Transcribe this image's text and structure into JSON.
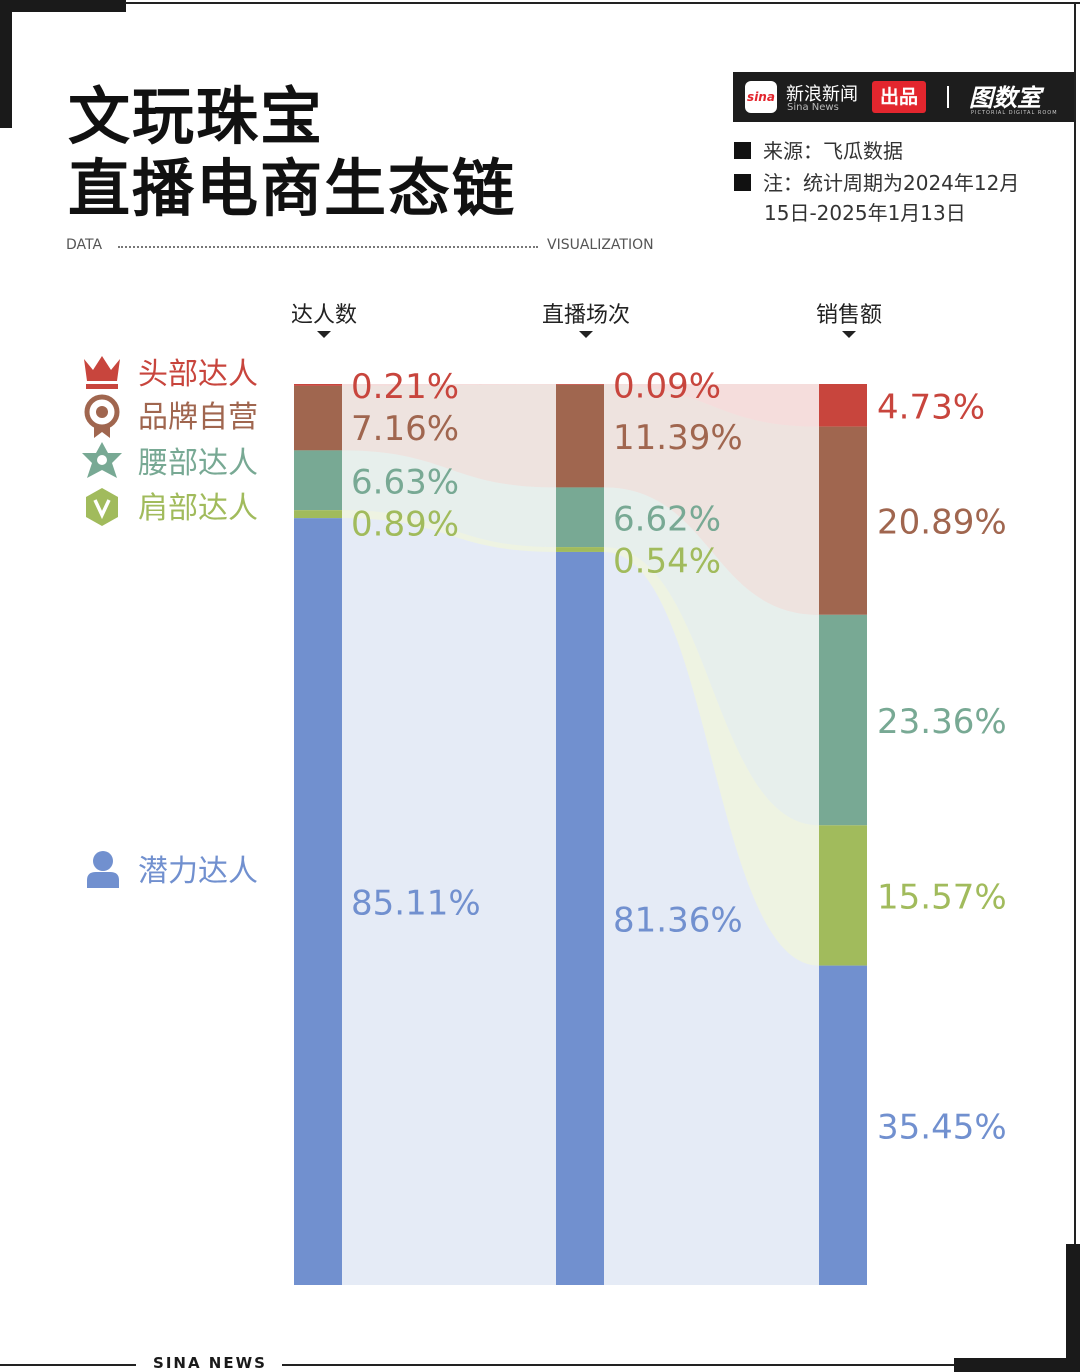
{
  "title_line1": "文玩珠宝",
  "title_line2": "直播电商生态链",
  "deco_left": "DATA",
  "deco_right": "VISUALIZATION",
  "brand": {
    "logo_text": "sina",
    "name_cn": "新浪新闻",
    "name_en": "Sina News",
    "badge": "出品",
    "partner": "图数室",
    "partner_sub": "PICTORIAL DIGITAL ROOM"
  },
  "notes": {
    "source": "来源：飞瓜数据",
    "period_line1": "注：统计周期为2024年12月",
    "period_line2": "15日-2025年1月13日"
  },
  "footer": "SINA NEWS",
  "colors": {
    "头部达人": "#c8453d",
    "品牌自营": "#a0664f",
    "腰部达人": "#78a994",
    "肩部达人": "#a1bb5c",
    "潜力达人": "#7190cf"
  },
  "legend_icons": {
    "头部达人": "crown-icon",
    "品牌自营": "medal-icon",
    "腰部达人": "star-badge-icon",
    "肩部达人": "v-badge-icon",
    "潜力达人": "person-icon"
  },
  "chart_data": {
    "type": "bar",
    "stacked": true,
    "normalized": true,
    "categories": [
      "达人数",
      "直播场次",
      "销售额"
    ],
    "series": [
      {
        "name": "头部达人",
        "values": [
          0.21,
          0.09,
          4.73
        ]
      },
      {
        "name": "品牌自营",
        "values": [
          7.16,
          11.39,
          20.89
        ]
      },
      {
        "name": "腰部达人",
        "values": [
          6.63,
          6.62,
          23.36
        ]
      },
      {
        "name": "肩部达人",
        "values": [
          0.89,
          0.54,
          15.57
        ]
      },
      {
        "name": "潜力达人",
        "values": [
          85.11,
          81.36,
          35.45
        ]
      }
    ],
    "value_labels": [
      [
        "0.21%",
        "0.09%",
        "4.73%"
      ],
      [
        "7.16%",
        "11.39%",
        "20.89%"
      ],
      [
        "6.63%",
        "6.62%",
        "23.36%"
      ],
      [
        "0.89%",
        "0.54%",
        "15.57%"
      ],
      [
        "85.11%",
        "81.36%",
        "35.45%"
      ]
    ],
    "unit": "%",
    "legend_position": "left"
  }
}
